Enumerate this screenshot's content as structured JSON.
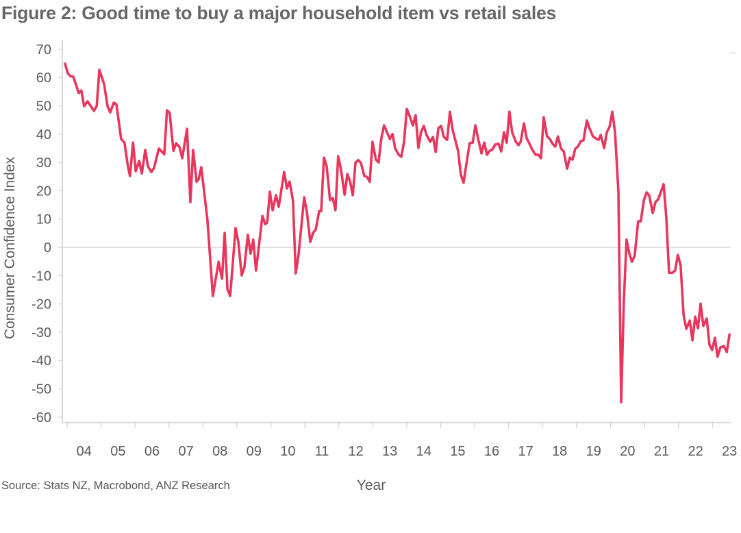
{
  "chart_data": {
    "type": "line",
    "title": "Figure 2: Good time to buy a major household item vs retail sales",
    "xlabel": "Year",
    "ylabel": "Consumer Confidence Index",
    "source": "Source: Stats NZ, Macrobond, ANZ Research",
    "ylim": [
      -60,
      70
    ],
    "xlim": [
      2003.9,
      2023.55
    ],
    "yticks": [
      70,
      60,
      50,
      40,
      30,
      20,
      10,
      0,
      -10,
      -20,
      -30,
      -40,
      -50,
      -60
    ],
    "xtick_labels": [
      "04",
      "05",
      "06",
      "07",
      "08",
      "09",
      "10",
      "11",
      "12",
      "13",
      "14",
      "15",
      "16",
      "17",
      "18",
      "19",
      "20",
      "21",
      "22",
      "23"
    ],
    "grid": "horizontal line at 0 only",
    "line_color": "#E8365D",
    "x": [
      2003.94,
      2004.02,
      2004.1,
      2004.18,
      2004.26,
      2004.34,
      2004.42,
      2004.5,
      2004.6,
      2004.79,
      2004.87,
      2004.95,
      2005.09,
      2005.19,
      2005.27,
      2005.37,
      2005.45,
      2005.59,
      2005.69,
      2005.79,
      2005.85,
      2005.94,
      2006.02,
      2006.12,
      2006.2,
      2006.3,
      2006.38,
      2006.48,
      2006.56,
      2006.7,
      2006.86,
      2006.94,
      2007.02,
      2007.13,
      2007.21,
      2007.31,
      2007.39,
      2007.53,
      2007.63,
      2007.71,
      2007.81,
      2007.87,
      2007.95,
      2008.13,
      2008.29,
      2008.46,
      2008.56,
      2008.64,
      2008.72,
      2008.8,
      2008.96,
      2009.04,
      2009.14,
      2009.22,
      2009.32,
      2009.4,
      2009.48,
      2009.56,
      2009.75,
      2009.83,
      2009.89,
      2009.97,
      2010.05,
      2010.15,
      2010.23,
      2010.39,
      2010.47,
      2010.55,
      2010.65,
      2010.73,
      2010.81,
      2010.98,
      2011.06,
      2011.16,
      2011.24,
      2011.32,
      2011.42,
      2011.48,
      2011.56,
      2011.64,
      2011.74,
      2011.82,
      2011.9,
      2011.98,
      2012.06,
      2012.17,
      2012.25,
      2012.33,
      2012.41,
      2012.49,
      2012.57,
      2012.65,
      2012.75,
      2012.83,
      2012.91,
      2012.99,
      2013.09,
      2013.17,
      2013.25,
      2013.33,
      2013.41,
      2013.5,
      2013.58,
      2013.66,
      2013.76,
      2013.84,
      2013.92,
      2014.0,
      2014.08,
      2014.18,
      2014.26,
      2014.34,
      2014.42,
      2014.5,
      2014.58,
      2014.69,
      2014.77,
      2014.85,
      2014.93,
      2015.01,
      2015.09,
      2015.19,
      2015.27,
      2015.35,
      2015.51,
      2015.59,
      2015.67,
      2015.85,
      2015.94,
      2016.02,
      2016.1,
      2016.2,
      2016.28,
      2016.36,
      2016.44,
      2016.52,
      2016.6,
      2016.7,
      2016.78,
      2016.86,
      2016.94,
      2017.02,
      2017.1,
      2017.21,
      2017.29,
      2017.35,
      2017.45,
      2017.53,
      2017.61,
      2017.69,
      2017.79,
      2017.87,
      2017.95,
      2018.03,
      2018.13,
      2018.21,
      2018.29,
      2018.37,
      2018.45,
      2018.54,
      2018.62,
      2018.72,
      2018.8,
      2018.88,
      2018.96,
      2019.04,
      2019.12,
      2019.2,
      2019.3,
      2019.38,
      2019.48,
      2019.56,
      2019.65,
      2019.71,
      2019.81,
      2019.89,
      2019.97,
      2020.05,
      2020.13,
      2020.23,
      2020.31,
      2020.39,
      2020.47,
      2020.55,
      2020.63,
      2020.71,
      2020.81,
      2020.89,
      2020.98,
      2021.06,
      2021.14,
      2021.24,
      2021.32,
      2021.4,
      2021.48,
      2021.56,
      2021.64,
      2021.72,
      2021.82,
      2021.9,
      2021.98,
      2022.06,
      2022.15,
      2022.23,
      2022.33,
      2022.41,
      2022.49,
      2022.57,
      2022.65,
      2022.73,
      2022.83,
      2022.91,
      2022.99,
      2023.07,
      2023.15,
      2023.23,
      2023.33,
      2023.42,
      2023.5
    ],
    "values": [
      64.9,
      61.5,
      60.5,
      60.3,
      57.6,
      54.5,
      55.4,
      49.9,
      51.6,
      48.2,
      49.9,
      62.7,
      57.6,
      49.9,
      47.7,
      51.1,
      50.6,
      38.3,
      37,
      28.6,
      25.2,
      37,
      26.9,
      30.5,
      26.1,
      34.4,
      28.6,
      26.6,
      28.1,
      34.9,
      32.9,
      48.4,
      47.5,
      34.1,
      36.8,
      35.4,
      31.5,
      41.9,
      16,
      34.4,
      23.2,
      24,
      28.3,
      9.9,
      -17.2,
      -5.1,
      -11.1,
      5.1,
      -14.8,
      -17.2,
      6.8,
      1.9,
      -9.9,
      -7,
      4.4,
      -2.2,
      2.7,
      -8.2,
      11.1,
      8.2,
      8.7,
      19.6,
      13.1,
      18.4,
      14.3,
      26.6,
      20.8,
      23.2,
      16.5,
      -9.2,
      -2.9,
      17.7,
      12.3,
      1.9,
      5.1,
      6.3,
      12.8,
      12.8,
      31.7,
      28.8,
      16.7,
      17.4,
      13.1,
      32.2,
      27.6,
      18.6,
      25.9,
      23.2,
      18.4,
      30,
      30.8,
      29.8,
      25.2,
      24.9,
      23.2,
      37.3,
      31,
      30,
      38.5,
      43.1,
      40.9,
      38.3,
      40,
      34.9,
      32.7,
      32,
      37.3,
      48.9,
      46.5,
      43.1,
      46.7,
      35.1,
      40.7,
      42.9,
      39.7,
      37.3,
      39,
      33.7,
      42.1,
      42.9,
      39,
      38,
      47.9,
      41.4,
      34.1,
      25.7,
      22.8,
      36.8,
      37,
      43.1,
      38.3,
      33.2,
      37,
      32.7,
      34.1,
      34.6,
      36.3,
      36.6,
      33.9,
      40.7,
      37,
      47.9,
      40.7,
      37.3,
      36.1,
      37.3,
      43.8,
      38.5,
      36.6,
      34.6,
      32.7,
      32.7,
      31.5,
      46,
      39.2,
      38.3,
      36.6,
      35.6,
      39.2,
      34.9,
      33.9,
      27.8,
      31.7,
      31,
      34.9,
      35.6,
      37.5,
      37.8,
      44.8,
      42.1,
      39.2,
      38.5,
      38,
      39.7,
      35.1,
      40.7,
      42.6,
      47.9,
      40.9,
      19.6,
      -54.7,
      -19.1,
      2.7,
      -2.2,
      -5.1,
      -2.9,
      9.2,
      9.2,
      16.7,
      19.4,
      18.2,
      12.1,
      16,
      16.9,
      19.6,
      22.3,
      10.7,
      -9,
      -9,
      -8.2,
      -2.7,
      -6.3,
      -24,
      -28.8,
      -25.9,
      -32.9,
      -24.5,
      -28.6,
      -19.9,
      -27.8,
      -25.2,
      -34.4,
      -36.3,
      -32,
      -38.7,
      -35.4,
      -34.9,
      -37,
      -30.8
    ]
  }
}
